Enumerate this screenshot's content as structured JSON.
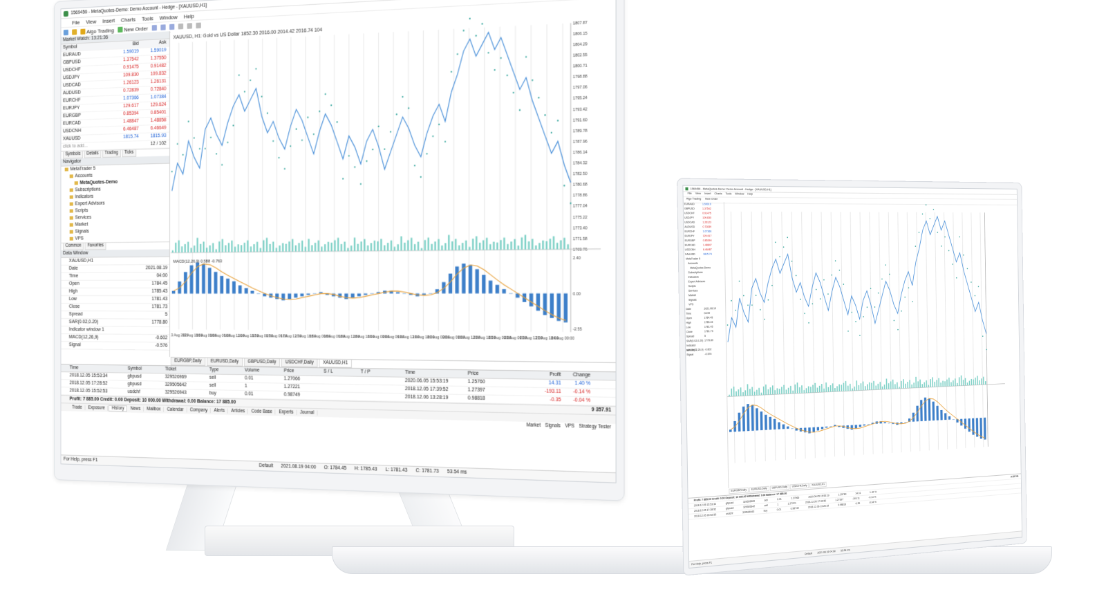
{
  "monitor": {
    "title": "1569456 - MetaQuotes-Demo: Demo Account - Hedge - [XAUUSD,H1]",
    "menu": [
      "File",
      "View",
      "Insert",
      "Charts",
      "Tools",
      "Window",
      "Help"
    ],
    "toolbar": {
      "algo_trading": "Algo Trading",
      "new_order": "New Order"
    },
    "market_watch": {
      "header": "Market Watch: 13:21:36",
      "columns": [
        "Symbol",
        "Bid",
        "Ask"
      ],
      "rows": [
        {
          "symbol": "EURAUD",
          "bid": "1.59019",
          "ask": "1.59019",
          "dir": "up"
        },
        {
          "symbol": "GBPUSD",
          "bid": "1.37542",
          "ask": "1.37550",
          "dir": "dn"
        },
        {
          "symbol": "USDCHF",
          "bid": "0.91475",
          "ask": "0.91482",
          "dir": "dn"
        },
        {
          "symbol": "USDJPY",
          "bid": "109.830",
          "ask": "109.832",
          "dir": "dn"
        },
        {
          "symbol": "USDCAD",
          "bid": "1.26123",
          "ask": "1.26131",
          "dir": "dn"
        },
        {
          "symbol": "AUDUSD",
          "bid": "0.72839",
          "ask": "0.72840",
          "dir": "dn"
        },
        {
          "symbol": "EURCHF",
          "bid": "1.07366",
          "ask": "1.07384",
          "dir": "up"
        },
        {
          "symbol": "EURJPY",
          "bid": "129.617",
          "ask": "129.624",
          "dir": "dn"
        },
        {
          "symbol": "EURGBP",
          "bid": "0.85394",
          "ask": "0.85401",
          "dir": "dn"
        },
        {
          "symbol": "EURCAD",
          "bid": "1.48847",
          "ask": "1.48858",
          "dir": "dn"
        },
        {
          "symbol": "USDCNH",
          "bid": "6.46487",
          "ask": "6.46649",
          "dir": "dn"
        },
        {
          "symbol": "XAUUSD",
          "bid": "1815.74",
          "ask": "1815.93",
          "dir": "up"
        }
      ],
      "add_placeholder": "click to add...",
      "count": "12 / 102",
      "tabs": [
        "Symbols",
        "Details",
        "Trading",
        "Ticks"
      ]
    },
    "navigator": {
      "header": "Navigator",
      "items": [
        {
          "label": "MetaTrader 5",
          "indent": 0
        },
        {
          "label": "Accounts",
          "indent": 1
        },
        {
          "label": "MetaQuotes-Demo",
          "indent": 2,
          "bold": true
        },
        {
          "label": "Subscriptions",
          "indent": 1
        },
        {
          "label": "Indicators",
          "indent": 1
        },
        {
          "label": "Expert Advisors",
          "indent": 1
        },
        {
          "label": "Scripts",
          "indent": 1
        },
        {
          "label": "Services",
          "indent": 1
        },
        {
          "label": "Market",
          "indent": 1
        },
        {
          "label": "Signals",
          "indent": 1
        },
        {
          "label": "VPS",
          "indent": 1
        }
      ],
      "tabs": [
        "Common",
        "Favorites"
      ]
    },
    "data_window": {
      "header": "Data Window",
      "symbol": "XAUUSD,H1",
      "rows": [
        {
          "k": "Date",
          "v": "2021.08.19"
        },
        {
          "k": "Time",
          "v": "04:00"
        },
        {
          "k": "Open",
          "v": "1784.45"
        },
        {
          "k": "High",
          "v": "1785.43"
        },
        {
          "k": "Low",
          "v": "1781.43"
        },
        {
          "k": "Close",
          "v": "1781.73"
        },
        {
          "k": "Spread",
          "v": "5"
        },
        {
          "k": "SAR(0.02,0.20)",
          "v": "1778.80"
        },
        {
          "k": "Indicator window 1",
          "v": ""
        },
        {
          "k": "MACD(12,26,9)",
          "v": "-0.602"
        },
        {
          "k": "Signal",
          "v": "-0.576"
        }
      ]
    },
    "chart": {
      "header": "XAUUSD, H1: Gold vs US Dollar  1852.30 2016.00 2014.42 2016.74  104",
      "macd_label": "MACD(12,26,9) 0.588 -0.763",
      "y_ticks": [
        "1807.87",
        "1806.15",
        "1804.29",
        "1802.55",
        "1800.71",
        "1798.88",
        "1797.06",
        "1795.24",
        "1793.42",
        "1791.60",
        "1789.78",
        "1787.96",
        "1786.14",
        "1784.32",
        "1782.50",
        "1780.68",
        "1778.86",
        "1777.04",
        "1775.22",
        "1773.40",
        "1771.58",
        "1769.76"
      ],
      "macd_ticks": [
        "2.40",
        "0.00",
        "-2.55"
      ],
      "x_ticks": [
        "13 Aug 2021",
        "13 Aug 18:00",
        "16 Aug 00:00",
        "16 Aug 06:00",
        "16 Aug 12:00",
        "16 Aug 18:00",
        "17 Aug 00:00",
        "17 Aug 06:00",
        "17 Aug 12:00",
        "17 Aug 18:00",
        "18 Aug 00:00",
        "18 Aug 06:00",
        "18 Aug 12:00",
        "18 Aug 18:00",
        "19 Aug 00:00",
        "19 Aug 06:00",
        "19 Aug 12:00",
        "19 Aug 18:00",
        "20 Aug 00:00",
        "20 Aug 06:00",
        "20 Aug 12:00",
        "20 Aug 18:00",
        "23 Aug 00:00",
        "23 Aug 06:00",
        "23 Aug 12:00",
        "23 Aug 18:00",
        "24 Aug 00:00"
      ],
      "tabs": [
        "EURGBP,Daily",
        "EURUSD,Daily",
        "GBPUSD,Daily",
        "USDCHF,Daily",
        "XAUUSD,H1"
      ],
      "series_price": [
        1781,
        1786,
        1784,
        1790,
        1787,
        1785,
        1792,
        1794,
        1791,
        1789,
        1793,
        1796,
        1798,
        1795,
        1797,
        1799,
        1794,
        1791,
        1793,
        1790,
        1788,
        1792,
        1795,
        1793,
        1790,
        1787,
        1791,
        1794,
        1792,
        1789,
        1786,
        1790,
        1788,
        1785,
        1789,
        1791,
        1788,
        1784,
        1787,
        1790,
        1793,
        1791,
        1788,
        1786,
        1790,
        1793,
        1795,
        1792,
        1797,
        1800,
        1804,
        1806,
        1803,
        1805,
        1807,
        1804,
        1806,
        1803,
        1800,
        1797,
        1799,
        1795,
        1792,
        1789,
        1786,
        1788,
        1784,
        1781
      ],
      "macd_hist": [
        0.2,
        0.9,
        1.6,
        2.1,
        2.3,
        2.2,
        1.9,
        1.6,
        1.3,
        1.1,
        0.9,
        0.6,
        0.4,
        0.2,
        0.0,
        -0.2,
        -0.3,
        -0.4,
        -0.5,
        -0.4,
        -0.3,
        -0.2,
        -0.1,
        0.0,
        0.1,
        -0.1,
        -0.2,
        -0.3,
        -0.4,
        -0.3,
        -0.2,
        -0.1,
        0.0,
        0.1,
        0.2,
        0.2,
        0.1,
        0.0,
        -0.1,
        -0.2,
        -0.1,
        0.0,
        0.3,
        0.8,
        1.4,
        1.9,
        2.1,
        2.0,
        1.7,
        1.3,
        0.9,
        0.6,
        0.3,
        0.0,
        -0.3,
        -0.6,
        -0.9,
        -1.2,
        -1.5,
        -1.7,
        -1.9,
        -2.0
      ]
    },
    "toolbox": {
      "columns": [
        "Time",
        "Symbol",
        "Ticket",
        "Type",
        "Volume",
        "Price",
        "S / L",
        "T / P",
        "Time",
        "Price",
        "Profit",
        "Change"
      ],
      "rows": [
        [
          "2018.12.05 15:53:34",
          "gbpusd",
          "329526969",
          "sell",
          "0.01",
          "1.27066",
          "",
          "",
          "2020.06.05 15:53:19",
          "1.25760",
          "14.31",
          "1.40 %"
        ],
        [
          "2018.12.05 17:28:52",
          "gbpusd",
          "329505642",
          "sell",
          "1",
          "1.27221",
          "",
          "",
          "2018.12.05 17:39:52",
          "1.27397",
          "-193.11",
          "-0.14 %"
        ],
        [
          "2018.12.05 15:52:53",
          "usdchf",
          "329526943",
          "buy",
          "0.01",
          "0.98749",
          "",
          "",
          "2018.12.06 13:28:19",
          "0.98818",
          "-0.35",
          "-0.04 %"
        ]
      ],
      "summary": "Profit: 7 885.00  Credit: 0.00  Deposit: 10 000.00  Withdrawal: 0.00  Balance: 17 885.00",
      "summary_total": "9 357.91",
      "tabs": [
        "Trade",
        "Exposure",
        "History",
        "News",
        "Mailbox",
        "Calendar",
        "Company",
        "Alerts",
        "Articles",
        "Code Base",
        "Experts",
        "Journal"
      ],
      "active_tab": "History",
      "right_tools": [
        "Market",
        "Signals",
        "VPS",
        "Strategy Tester"
      ]
    },
    "status": {
      "help": "For Help, press F1",
      "profile": "Default",
      "datetime": "2021.08.19 04:00",
      "open": "O: 1784.45",
      "high": "H: 1785.43",
      "low": "L: 1781.43",
      "close": "C: 1781.73",
      "ping": "53.54 ms"
    }
  },
  "laptop": {
    "title": "1569456 - MetaQuotes-Demo: Demo Account - Hedge - [XAUUSD,H1]",
    "menu": [
      "File",
      "View",
      "Insert",
      "Charts",
      "Tools",
      "Window",
      "Help"
    ],
    "toolbar": {
      "algo_trading": "Algo Trading",
      "new_order": "New Order"
    },
    "chart_tabs": [
      "EURGBP,Daily",
      "EURUSD,Daily",
      "GBPUSD,Daily",
      "USDCHF,Daily",
      "XAUUSD,H1"
    ],
    "summary": "Profit: 7 885.00  Credit: 0.00  Deposit: 10 000.00  Withdrawal: 0.00  Balance: 17 885.00",
    "summary_total": "9 357.91",
    "status_help": "For Help, press F1",
    "status_profile": "Default",
    "status_datetime": "2021.08.19 04:00",
    "status_ping": "53.54 ms"
  },
  "colors": {
    "price_line": "#4a90d9",
    "sar_dots": "#2fa39a",
    "volume": "#7fd1c7",
    "macd_bars": "#3d7fc9",
    "macd_signal": "#e8a13a",
    "up": "#1b5fd6",
    "down": "#d62020"
  }
}
